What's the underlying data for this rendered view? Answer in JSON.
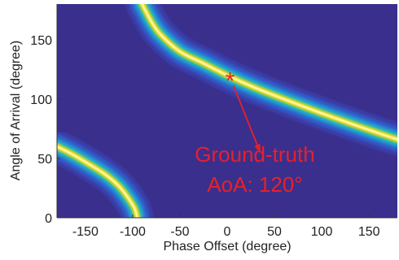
{
  "chart_data": {
    "type": "heatmap",
    "title": "",
    "xlabel": "Phase Offset (degree)",
    "ylabel": "Angle of Arrival (degree)",
    "xlim": [
      -180,
      180
    ],
    "ylim": [
      0,
      180
    ],
    "xticks": [
      -150,
      -100,
      -50,
      0,
      50,
      100,
      150
    ],
    "yticks": [
      0,
      50,
      100,
      150
    ],
    "xtick_labels": [
      "-150",
      "-100",
      "-50",
      "0",
      "50",
      "100",
      "150"
    ],
    "ytick_labels": [
      "0",
      "50",
      "100",
      "150"
    ],
    "colormap": "parula",
    "grid": false,
    "ridges": [
      {
        "label": "main ridge",
        "points": [
          [
            -90,
            180
          ],
          [
            -80,
            165
          ],
          [
            -70,
            154
          ],
          [
            -50,
            140
          ],
          [
            -25,
            130
          ],
          [
            0,
            120
          ],
          [
            25,
            111
          ],
          [
            50,
            103
          ],
          [
            100,
            88
          ],
          [
            150,
            74
          ],
          [
            180,
            66
          ]
        ]
      },
      {
        "label": "lower-left ridge",
        "points": [
          [
            -180,
            60
          ],
          [
            -165,
            54
          ],
          [
            -150,
            47
          ],
          [
            -130,
            37
          ],
          [
            -115,
            27
          ],
          [
            -105,
            17
          ],
          [
            -98,
            8
          ],
          [
            -95,
            0
          ]
        ]
      }
    ],
    "ground_truth": {
      "x": 3,
      "y": 120
    },
    "annotation": {
      "marker": "*",
      "lines": [
        "Ground-truth",
        "AoA: 120°"
      ],
      "color": "#e8202a",
      "arrow_to": {
        "x": 35,
        "y": 55
      }
    }
  },
  "colors": {
    "background": "#3a2f8c",
    "annotation": "#e8202a"
  }
}
